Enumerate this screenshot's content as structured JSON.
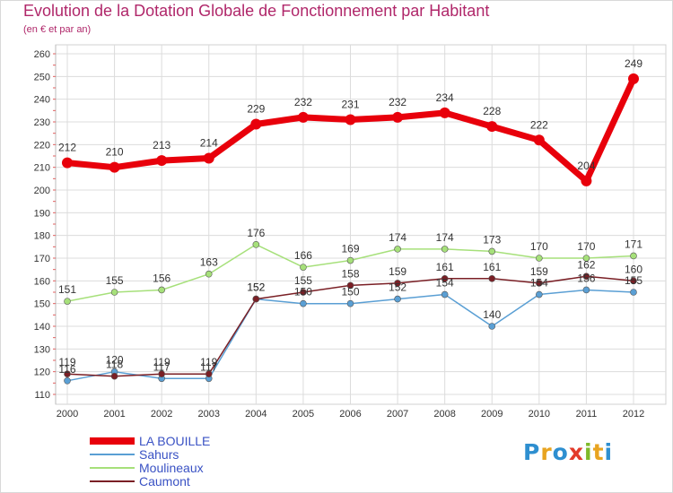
{
  "title": "Evolution de la Dotation Globale de Fonctionnement par Habitant",
  "subtitle": "(en € et par an)",
  "brand": "Proxiti",
  "chart_data": {
    "type": "line",
    "title": "Evolution de la Dotation Globale de Fonctionnement par Habitant",
    "subtitle": "(en € et par an)",
    "xlabel": "",
    "ylabel": "",
    "x": [
      "2000",
      "2001",
      "2002",
      "2003",
      "2004",
      "2005",
      "2006",
      "2007",
      "2008",
      "2009",
      "2010",
      "2011",
      "2012"
    ],
    "ylim": [
      110,
      260
    ],
    "yticks": [
      110,
      120,
      130,
      140,
      150,
      160,
      170,
      180,
      190,
      200,
      210,
      220,
      230,
      240,
      250,
      260
    ],
    "grid": true,
    "legend_position": "bottom-left",
    "series": [
      {
        "name": "LA BOUILLE",
        "color": "#e8000b",
        "values": [
          212,
          210,
          213,
          214,
          229,
          232,
          231,
          232,
          234,
          228,
          222,
          204,
          249
        ],
        "labels": [
          "212",
          "210",
          "213",
          "214",
          "229",
          "232",
          "231",
          "232",
          "234",
          "228",
          "222",
          "204",
          "249"
        ]
      },
      {
        "name": "Sahurs",
        "color": "#5a9fd4",
        "values": [
          116,
          120,
          117,
          117,
          152,
          150,
          150,
          152,
          154,
          140,
          154,
          156,
          155
        ],
        "labels": [
          "116",
          "120",
          "117",
          "117",
          "152",
          "150",
          "150",
          "152",
          "154",
          "140",
          "154",
          "156",
          "155"
        ]
      },
      {
        "name": "Moulineaux",
        "color": "#a6e07a",
        "values": [
          151,
          155,
          156,
          163,
          176,
          166,
          169,
          174,
          174,
          173,
          170,
          170,
          171
        ],
        "labels": [
          "151",
          "155",
          "156",
          "163",
          "176",
          "166",
          "169",
          "174",
          "174",
          "173",
          "170",
          "170",
          "171"
        ]
      },
      {
        "name": "Caumont",
        "color": "#7a1f25",
        "values": [
          119,
          118,
          119,
          119,
          152,
          155,
          158,
          159,
          161,
          161,
          159,
          162,
          160
        ],
        "labels": [
          "119",
          "118",
          "119",
          "119",
          "152",
          "155",
          "158",
          "159",
          "161",
          "161",
          "159",
          "162",
          "160"
        ]
      }
    ]
  }
}
